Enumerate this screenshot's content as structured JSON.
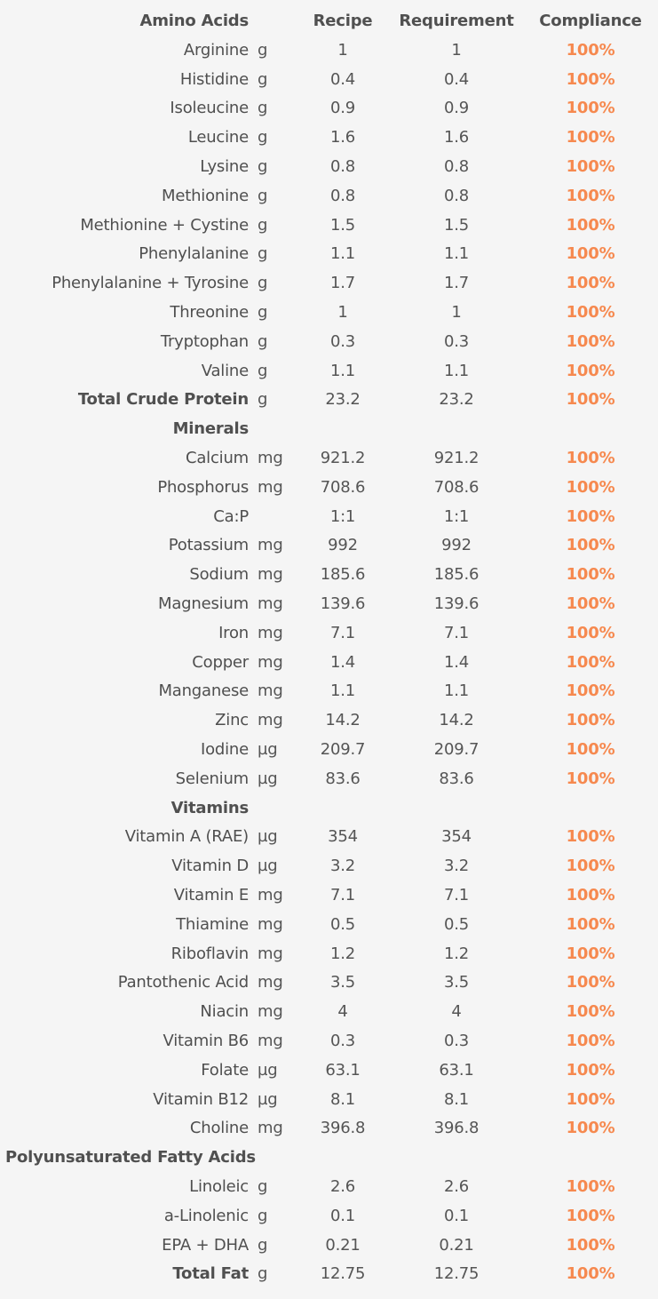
{
  "header": {
    "group_label": "Amino Acids",
    "recipe_label": "Recipe",
    "requirement_label": "Requirement",
    "compliance_label": "Compliance"
  },
  "amino_acids": [
    {
      "name": "Arginine",
      "unit": "g",
      "recipe": "1",
      "requirement": "1",
      "compliance": "100%"
    },
    {
      "name": "Histidine",
      "unit": "g",
      "recipe": "0.4",
      "requirement": "0.4",
      "compliance": "100%"
    },
    {
      "name": "Isoleucine",
      "unit": "g",
      "recipe": "0.9",
      "requirement": "0.9",
      "compliance": "100%"
    },
    {
      "name": "Leucine",
      "unit": "g",
      "recipe": "1.6",
      "requirement": "1.6",
      "compliance": "100%"
    },
    {
      "name": "Lysine",
      "unit": "g",
      "recipe": "0.8",
      "requirement": "0.8",
      "compliance": "100%"
    },
    {
      "name": "Methionine",
      "unit": "g",
      "recipe": "0.8",
      "requirement": "0.8",
      "compliance": "100%"
    },
    {
      "name": "Methionine + Cystine",
      "unit": "g",
      "recipe": "1.5",
      "requirement": "1.5",
      "compliance": "100%"
    },
    {
      "name": "Phenylalanine",
      "unit": "g",
      "recipe": "1.1",
      "requirement": "1.1",
      "compliance": "100%"
    },
    {
      "name": "Phenylalanine + Tyrosine",
      "unit": "g",
      "recipe": "1.7",
      "requirement": "1.7",
      "compliance": "100%"
    },
    {
      "name": "Threonine",
      "unit": "g",
      "recipe": "1",
      "requirement": "1",
      "compliance": "100%"
    },
    {
      "name": "Tryptophan",
      "unit": "g",
      "recipe": "0.3",
      "requirement": "0.3",
      "compliance": "100%"
    },
    {
      "name": "Valine",
      "unit": "g",
      "recipe": "1.1",
      "requirement": "1.1",
      "compliance": "100%"
    },
    {
      "name": "Total Crude Protein",
      "unit": "g",
      "recipe": "23.2",
      "requirement": "23.2",
      "compliance": "100%",
      "bold": true
    }
  ],
  "minerals_label": "Minerals",
  "minerals": [
    {
      "name": "Calcium",
      "unit": "mg",
      "recipe": "921.2",
      "requirement": "921.2",
      "compliance": "100%"
    },
    {
      "name": "Phosphorus",
      "unit": "mg",
      "recipe": "708.6",
      "requirement": "708.6",
      "compliance": "100%"
    },
    {
      "name": "Ca:P",
      "unit": "",
      "recipe": "1:1",
      "requirement": "1:1",
      "compliance": "100%"
    },
    {
      "name": "Potassium",
      "unit": "mg",
      "recipe": "992",
      "requirement": "992",
      "compliance": "100%"
    },
    {
      "name": "Sodium",
      "unit": "mg",
      "recipe": "185.6",
      "requirement": "185.6",
      "compliance": "100%"
    },
    {
      "name": "Magnesium",
      "unit": "mg",
      "recipe": "139.6",
      "requirement": "139.6",
      "compliance": "100%"
    },
    {
      "name": "Iron",
      "unit": "mg",
      "recipe": "7.1",
      "requirement": "7.1",
      "compliance": "100%"
    },
    {
      "name": "Copper",
      "unit": "mg",
      "recipe": "1.4",
      "requirement": "1.4",
      "compliance": "100%"
    },
    {
      "name": "Manganese",
      "unit": "mg",
      "recipe": "1.1",
      "requirement": "1.1",
      "compliance": "100%"
    },
    {
      "name": "Zinc",
      "unit": "mg",
      "recipe": "14.2",
      "requirement": "14.2",
      "compliance": "100%"
    },
    {
      "name": "Iodine",
      "unit": "µg",
      "recipe": "209.7",
      "requirement": "209.7",
      "compliance": "100%"
    },
    {
      "name": "Selenium",
      "unit": "µg",
      "recipe": "83.6",
      "requirement": "83.6",
      "compliance": "100%"
    }
  ],
  "vitamins_label": "Vitamins",
  "vitamins": [
    {
      "name": "Vitamin A (RAE)",
      "unit": "µg",
      "recipe": "354",
      "requirement": "354",
      "compliance": "100%"
    },
    {
      "name": "Vitamin D",
      "unit": "µg",
      "recipe": "3.2",
      "requirement": "3.2",
      "compliance": "100%"
    },
    {
      "name": "Vitamin E",
      "unit": "mg",
      "recipe": "7.1",
      "requirement": "7.1",
      "compliance": "100%"
    },
    {
      "name": "Thiamine",
      "unit": "mg",
      "recipe": "0.5",
      "requirement": "0.5",
      "compliance": "100%"
    },
    {
      "name": "Riboflavin",
      "unit": "mg",
      "recipe": "1.2",
      "requirement": "1.2",
      "compliance": "100%"
    },
    {
      "name": "Pantothenic Acid",
      "unit": "mg",
      "recipe": "3.5",
      "requirement": "3.5",
      "compliance": "100%"
    },
    {
      "name": "Niacin",
      "unit": "mg",
      "recipe": "4",
      "requirement": "4",
      "compliance": "100%"
    },
    {
      "name": "Vitamin B6",
      "unit": "mg",
      "recipe": "0.3",
      "requirement": "0.3",
      "compliance": "100%"
    },
    {
      "name": "Folate",
      "unit": "µg",
      "recipe": "63.1",
      "requirement": "63.1",
      "compliance": "100%"
    },
    {
      "name": "Vitamin B12",
      "unit": "µg",
      "recipe": "8.1",
      "requirement": "8.1",
      "compliance": "100%"
    },
    {
      "name": "Choline",
      "unit": "mg",
      "recipe": "396.8",
      "requirement": "396.8",
      "compliance": "100%"
    }
  ],
  "fatty_acids_label": "Polyunsaturated Fatty Acids",
  "fatty_acids": [
    {
      "name": "Linoleic",
      "unit": "g",
      "recipe": "2.6",
      "requirement": "2.6",
      "compliance": "100%"
    },
    {
      "name": "a-Linolenic",
      "unit": "g",
      "recipe": "0.1",
      "requirement": "0.1",
      "compliance": "100%"
    },
    {
      "name": "EPA + DHA",
      "unit": "g",
      "recipe": "0.21",
      "requirement": "0.21",
      "compliance": "100%"
    },
    {
      "name": "Total Fat",
      "unit": "g",
      "recipe": "12.75",
      "requirement": "12.75",
      "compliance": "100%",
      "bold": true
    }
  ],
  "colors": {
    "background": "#f5f5f5",
    "text": "#4a4a4a",
    "compliance": "#f6894f"
  }
}
